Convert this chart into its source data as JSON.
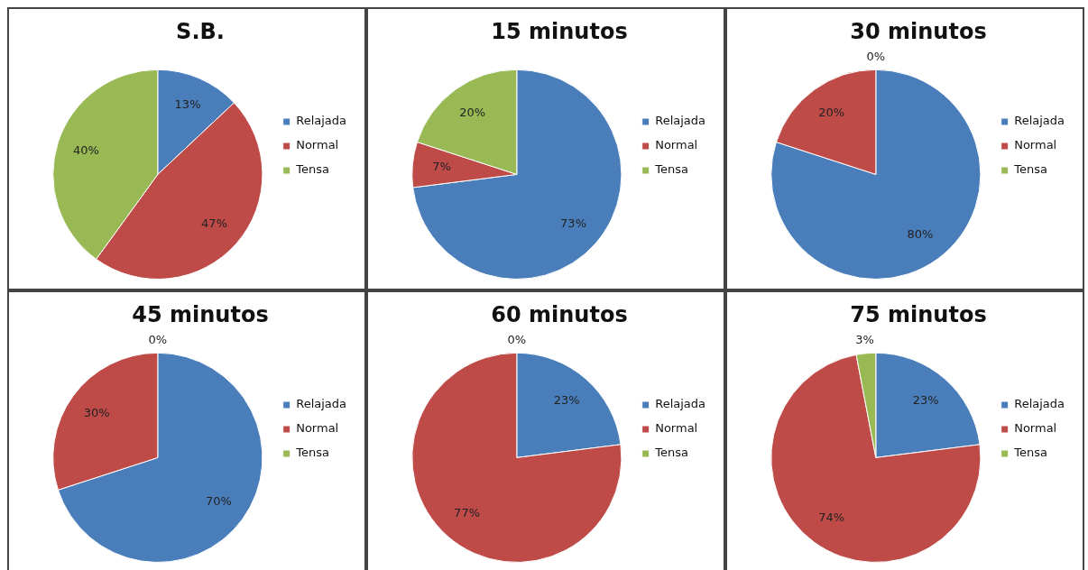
{
  "chart_data": [
    {
      "type": "pie",
      "title": "S.B.",
      "categories": [
        "Relajada",
        "Normal",
        "Tensa"
      ],
      "values": [
        13,
        47,
        40
      ],
      "value_labels": [
        "13%",
        "47%",
        "40%"
      ],
      "colors": [
        "#4a7ebb",
        "#be4b48",
        "#98b954"
      ],
      "legend": "right"
    },
    {
      "type": "pie",
      "title": "15 minutos",
      "categories": [
        "Relajada",
        "Normal",
        "Tensa"
      ],
      "values": [
        73,
        7,
        20
      ],
      "value_labels": [
        "73%",
        "7%",
        "20%"
      ],
      "colors": [
        "#4a7ebb",
        "#be4b48",
        "#98b954"
      ],
      "legend": "right"
    },
    {
      "type": "pie",
      "title": "30 minutos",
      "categories": [
        "Relajada",
        "Normal",
        "Tensa"
      ],
      "values": [
        80,
        20,
        0
      ],
      "value_labels": [
        "80%",
        "20%",
        "0%"
      ],
      "colors": [
        "#4a7ebb",
        "#be4b48",
        "#98b954"
      ],
      "legend": "right"
    },
    {
      "type": "pie",
      "title": "45 minutos",
      "categories": [
        "Relajada",
        "Normal",
        "Tensa"
      ],
      "values": [
        70,
        30,
        0
      ],
      "value_labels": [
        "70%",
        "30%",
        "0%"
      ],
      "colors": [
        "#4a7ebb",
        "#be4b48",
        "#98b954"
      ],
      "legend": "right"
    },
    {
      "type": "pie",
      "title": "60 minutos",
      "categories": [
        "Relajada",
        "Normal",
        "Tensa"
      ],
      "values": [
        23,
        77,
        0
      ],
      "value_labels": [
        "23%",
        "77%",
        "0%"
      ],
      "colors": [
        "#4a7ebb",
        "#be4b48",
        "#98b954"
      ],
      "legend": "right"
    },
    {
      "type": "pie",
      "title": "75 minutos",
      "categories": [
        "Relajada",
        "Normal",
        "Tensa"
      ],
      "values": [
        23,
        74,
        3
      ],
      "value_labels": [
        "23%",
        "74%",
        "3%"
      ],
      "colors": [
        "#4a7ebb",
        "#be4b48",
        "#98b954"
      ],
      "legend": "right"
    }
  ]
}
